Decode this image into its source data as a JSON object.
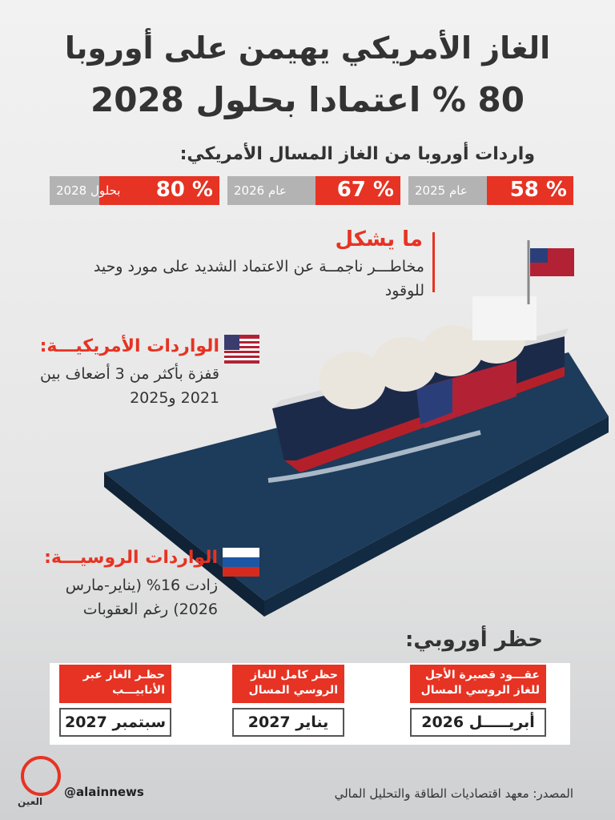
{
  "title": {
    "line1": "الغاز الأمريكي يهيمن على أوروبا",
    "line2": "80 % اعتمادا بحلول 2028"
  },
  "imports": {
    "heading": "واردات أوروبا من الغاز المسال الأمريكي:",
    "items": [
      {
        "value": "58 %",
        "year": "عام 2025"
      },
      {
        "value": "67 %",
        "year": "عام 2026"
      },
      {
        "value": "80 %",
        "year": "بحلول 2028"
      }
    ]
  },
  "risk": {
    "heading": "ما يشكل",
    "text": "مخاطـــر ناجمــة عن الاعتماد الشديد على مورد وحيد للوقود"
  },
  "us_imports": {
    "heading": "الواردات الأمريكيـــة:",
    "text": "قفزة بأكثر من 3 أضعاف بين 2021 و2025"
  },
  "russian_imports": {
    "heading": "الواردات الروسيـــة:",
    "text": "زادت 16% (يناير-مارس 2026) رغم العقوبات"
  },
  "ban": {
    "heading": "حظر أوروبي:",
    "items": [
      {
        "title": "عقـــود قصيرة الأجل للغاز الروسي المسال",
        "date": "أبريـــــل 2026"
      },
      {
        "title": "حظر كامل للغاز الروسي المسال",
        "date": "يناير 2027"
      },
      {
        "title": "حظـر الغاز عبر الأنابيـــب",
        "date": "سبتمبر 2027"
      }
    ]
  },
  "footer": {
    "logo": "العين",
    "handle": "@alainnews",
    "source": "المصدر: معهد اقتصاديات الطاقة والتحليل المالي"
  }
}
